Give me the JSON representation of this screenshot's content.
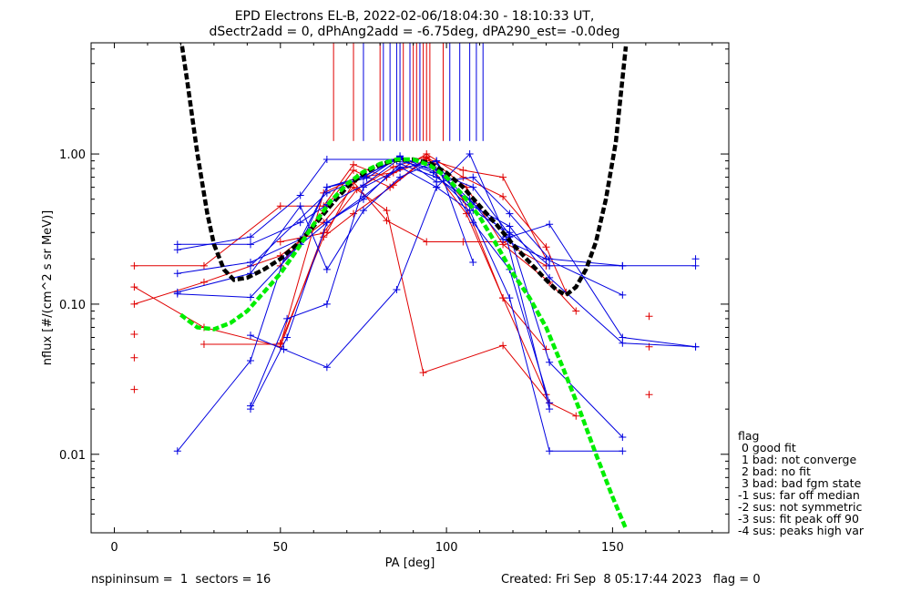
{
  "title": "EPD Electrons EL-B, 2022-02-06/18:04:30 - 18:10:33 UT,",
  "subtitle": "dSectr2add = 0, dPhAng2add = -6.75deg, dPA290_est=  -0.0deg",
  "footer": {
    "left": "nspininsum =  1  sectors = 16",
    "right": "Created: Fri Sep  8 05:17:44 2023   flag = 0"
  },
  "legend": {
    "title": "flag",
    "items": [
      " 0 good fit",
      " 1 bad: not converge",
      " 2 bad: no fit",
      " 3 bad: bad fgm state",
      "-1 sus: far off median",
      "-2 sus: not symmetric",
      "-3 sus: fit peak off 90",
      "-4 sus: peaks high var"
    ]
  },
  "chart_data": {
    "type": "line",
    "title": "EPD Electrons EL-B, 2022-02-06/18:04:30 - 18:10:33 UT,",
    "subtitle": "dSectr2add = 0, dPhAng2add = -6.75deg, dPA290_est=  -0.0deg",
    "xlabel": "PA [deg]",
    "ylabel": "nflux [#/(cm^2 s sr MeV)]",
    "xlim": [
      -7,
      185
    ],
    "ylim": [
      0.003,
      5.5
    ],
    "yscale": "log",
    "xticks": [
      0,
      50,
      100,
      150
    ],
    "xtick_labels": [
      "0",
      "50",
      "100",
      "150"
    ],
    "yticks": [
      0.01,
      0.1,
      1.0
    ],
    "ytick_labels": [
      "0.01",
      "0.10",
      "1.00"
    ],
    "colors": {
      "red": "#e00000",
      "blue": "#0000e0",
      "black": "#000000",
      "green": "#00ee00"
    },
    "vertical_lines": [
      {
        "x": 66,
        "color": "red"
      },
      {
        "x": 72,
        "color": "red"
      },
      {
        "x": 75,
        "color": "blue"
      },
      {
        "x": 80,
        "color": "red"
      },
      {
        "x": 81,
        "color": "blue"
      },
      {
        "x": 83,
        "color": "blue"
      },
      {
        "x": 85,
        "color": "blue"
      },
      {
        "x": 86,
        "color": "blue"
      },
      {
        "x": 87,
        "color": "red"
      },
      {
        "x": 89,
        "color": "blue"
      },
      {
        "x": 90,
        "color": "red"
      },
      {
        "x": 91,
        "color": "red"
      },
      {
        "x": 92,
        "color": "blue"
      },
      {
        "x": 93,
        "color": "red"
      },
      {
        "x": 94,
        "color": "red"
      },
      {
        "x": 95,
        "color": "red"
      },
      {
        "x": 99,
        "color": "red"
      },
      {
        "x": 101,
        "color": "blue"
      },
      {
        "x": 104,
        "color": "blue"
      },
      {
        "x": 107,
        "color": "blue"
      },
      {
        "x": 109,
        "color": "blue"
      },
      {
        "x": 111,
        "color": "blue"
      }
    ],
    "series": [
      {
        "color": "red",
        "points": [
          [
            6,
            0.18
          ],
          [
            27,
            0.18
          ],
          [
            50,
            0.45
          ],
          [
            63,
            0.45
          ],
          [
            72,
            0.85
          ],
          [
            82,
            0.7
          ],
          [
            94,
            1.0
          ],
          [
            105,
            0.7
          ],
          [
            117,
            0.52
          ],
          [
            130,
            0.24
          ],
          [
            136,
            0.12
          ]
        ]
      },
      {
        "color": "red",
        "points": [
          [
            6,
            0.13
          ],
          [
            27,
            0.07
          ],
          [
            50,
            0.052
          ],
          [
            63,
            0.3
          ],
          [
            73,
            0.58
          ],
          [
            84,
            0.82
          ],
          [
            94,
            0.96
          ],
          [
            106,
            0.6
          ],
          [
            117,
            0.25
          ],
          [
            131,
            0.14
          ],
          [
            139,
            0.09
          ]
        ]
      },
      {
        "color": "red",
        "points": [
          [
            6,
            0.1
          ],
          [
            27,
            0.14
          ],
          [
            50,
            0.21
          ],
          [
            63,
            0.35
          ],
          [
            72,
            0.6
          ],
          [
            82,
            0.42
          ],
          [
            93,
            0.035
          ],
          [
            117,
            0.053
          ],
          [
            131,
            0.022
          ],
          [
            139,
            0.018
          ]
        ]
      },
      {
        "color": "red",
        "points": [
          [
            27,
            0.054
          ],
          [
            50,
            0.054
          ],
          [
            63,
            0.55
          ],
          [
            73,
            0.7
          ],
          [
            84,
            0.75
          ],
          [
            94,
            0.9
          ],
          [
            106,
            0.4
          ],
          [
            117,
            0.11
          ],
          [
            130,
            0.025
          ]
        ]
      },
      {
        "color": "red",
        "points": [
          [
            50,
            0.18
          ],
          [
            63,
            0.42
          ],
          [
            72,
            0.78
          ],
          [
            83,
            0.6
          ],
          [
            94,
            0.95
          ],
          [
            105,
            0.5
          ],
          [
            117,
            0.11
          ],
          [
            130,
            0.05
          ]
        ]
      },
      {
        "color": "red",
        "points": [
          [
            50,
            0.26
          ],
          [
            64,
            0.3
          ],
          [
            72,
            0.65
          ],
          [
            82,
            0.36
          ],
          [
            94,
            0.26
          ],
          [
            105,
            0.26
          ],
          [
            117,
            0.26
          ],
          [
            130,
            0.18
          ]
        ]
      },
      {
        "color": "red",
        "points": [
          [
            50,
            0.055
          ],
          [
            63,
            0.28
          ],
          [
            72,
            0.4
          ],
          [
            84,
            0.62
          ],
          [
            94,
            0.93
          ],
          [
            105,
            0.78
          ],
          [
            117,
            0.7
          ],
          [
            130,
            0.2
          ]
        ]
      },
      {
        "color": "red",
        "points": [
          [
            6,
            0.063
          ]
        ]
      },
      {
        "color": "red",
        "points": [
          [
            6,
            0.044
          ]
        ]
      },
      {
        "color": "red",
        "points": [
          [
            6,
            0.027
          ]
        ]
      },
      {
        "color": "red",
        "points": [
          [
            161,
            0.083
          ]
        ]
      },
      {
        "color": "red",
        "points": [
          [
            161,
            0.052
          ]
        ]
      },
      {
        "color": "red",
        "points": [
          [
            161,
            0.025
          ]
        ]
      },
      {
        "color": "blue",
        "points": [
          [
            19,
            0.25
          ],
          [
            41,
            0.25
          ],
          [
            56,
            0.35
          ],
          [
            64,
            0.46
          ],
          [
            75,
            0.62
          ],
          [
            85,
            0.9
          ],
          [
            96,
            0.8
          ],
          [
            107,
            0.5
          ],
          [
            117,
            0.27
          ],
          [
            130,
            0.2
          ],
          [
            153,
            0.115
          ]
        ]
      },
      {
        "color": "blue",
        "points": [
          [
            19,
            0.23
          ],
          [
            41,
            0.28
          ],
          [
            56,
            0.53
          ],
          [
            64,
            0.92
          ],
          [
            86,
            0.92
          ],
          [
            96,
            0.75
          ],
          [
            108,
            0.42
          ],
          [
            119,
            0.3
          ],
          [
            131,
            0.18
          ],
          [
            153,
            0.18
          ],
          [
            175,
            0.18
          ]
        ]
      },
      {
        "color": "blue",
        "points": [
          [
            19,
            0.16
          ],
          [
            41,
            0.19
          ],
          [
            56,
            0.27
          ],
          [
            64,
            0.6
          ],
          [
            75,
            0.71
          ],
          [
            86,
            0.94
          ],
          [
            96,
            0.82
          ],
          [
            107,
            0.46
          ],
          [
            119,
            0.33
          ],
          [
            131,
            0.15
          ],
          [
            153,
            0.055
          ],
          [
            175,
            0.052
          ]
        ]
      },
      {
        "color": "blue",
        "points": [
          [
            19,
            0.12
          ],
          [
            41,
            0.16
          ],
          [
            56,
            0.45
          ],
          [
            64,
            0.17
          ],
          [
            75,
            0.42
          ],
          [
            86,
            0.7
          ],
          [
            97,
            0.9
          ],
          [
            108,
            0.19
          ]
        ]
      },
      {
        "color": "blue",
        "points": [
          [
            19,
            0.117
          ],
          [
            41,
            0.111
          ],
          [
            56,
            0.25
          ],
          [
            64,
            0.6
          ],
          [
            76,
            0.69
          ],
          [
            86,
            0.96
          ],
          [
            97,
            0.75
          ],
          [
            108,
            0.6
          ],
          [
            119,
            0.29
          ],
          [
            131,
            0.041
          ],
          [
            153,
            0.013
          ]
        ]
      },
      {
        "color": "blue",
        "points": [
          [
            19,
            0.0105
          ],
          [
            41,
            0.042
          ],
          [
            51,
            0.2
          ],
          [
            64,
            0.35
          ],
          [
            75,
            0.52
          ],
          [
            86,
            0.82
          ],
          [
            97,
            0.6
          ],
          [
            107,
            0.42
          ],
          [
            119,
            0.11
          ],
          [
            131,
            0.0105
          ],
          [
            153,
            0.0105
          ]
        ]
      },
      {
        "color": "blue",
        "points": [
          [
            41,
            0.062
          ],
          [
            51,
            0.05
          ],
          [
            64,
            0.038
          ],
          [
            85,
            0.125
          ],
          [
            97,
            0.6
          ],
          [
            107,
            1.0
          ],
          [
            118,
            0.28
          ],
          [
            131,
            0.02
          ]
        ]
      },
      {
        "color": "blue",
        "points": [
          [
            41,
            0.021
          ],
          [
            52,
            0.08
          ],
          [
            64,
            0.1
          ],
          [
            75,
            0.6
          ],
          [
            86,
            0.8
          ],
          [
            97,
            0.9
          ],
          [
            108,
            0.35
          ],
          [
            119,
            0.17
          ],
          [
            131,
            0.022
          ]
        ]
      },
      {
        "color": "blue",
        "points": [
          [
            41,
            0.02
          ],
          [
            52,
            0.06
          ],
          [
            64,
            0.35
          ],
          [
            75,
            0.5
          ],
          [
            86,
            0.86
          ],
          [
            97,
            0.7
          ],
          [
            108,
            0.47
          ],
          [
            119,
            0.28
          ],
          [
            131,
            0.34
          ],
          [
            153,
            0.06
          ],
          [
            175,
            0.052
          ]
        ]
      },
      {
        "color": "blue",
        "points": [
          [
            41,
            0.18
          ],
          [
            64,
            0.55
          ],
          [
            75,
            0.7
          ],
          [
            86,
            0.97
          ],
          [
            97,
            0.65
          ],
          [
            108,
            0.7
          ],
          [
            119,
            0.4
          ],
          [
            131,
            0.2
          ],
          [
            153,
            0.18
          ]
        ]
      },
      {
        "color": "blue",
        "points": [
          [
            175,
            0.2
          ]
        ]
      }
    ],
    "fits": [
      {
        "color": "black",
        "style": "dashed",
        "points": [
          [
            20,
            6
          ],
          [
            22,
            3
          ],
          [
            25,
            1
          ],
          [
            28,
            0.4
          ],
          [
            30,
            0.25
          ],
          [
            33,
            0.17
          ],
          [
            36,
            0.145
          ],
          [
            40,
            0.15
          ],
          [
            45,
            0.17
          ],
          [
            50,
            0.2
          ],
          [
            55,
            0.25
          ],
          [
            60,
            0.33
          ],
          [
            65,
            0.45
          ],
          [
            70,
            0.6
          ],
          [
            75,
            0.74
          ],
          [
            80,
            0.85
          ],
          [
            85,
            0.91
          ],
          [
            90,
            0.92
          ],
          [
            95,
            0.87
          ],
          [
            100,
            0.75
          ],
          [
            105,
            0.6
          ],
          [
            110,
            0.45
          ],
          [
            115,
            0.34
          ],
          [
            120,
            0.25
          ],
          [
            125,
            0.19
          ],
          [
            130,
            0.145
          ],
          [
            133,
            0.125
          ],
          [
            136,
            0.115
          ],
          [
            139,
            0.13
          ],
          [
            142,
            0.17
          ],
          [
            145,
            0.26
          ],
          [
            148,
            0.5
          ],
          [
            151,
            1.2
          ],
          [
            154,
            5.2
          ]
        ]
      },
      {
        "color": "green",
        "style": "dashed",
        "points": [
          [
            20,
            0.085
          ],
          [
            25,
            0.07
          ],
          [
            30,
            0.068
          ],
          [
            35,
            0.075
          ],
          [
            40,
            0.09
          ],
          [
            45,
            0.12
          ],
          [
            50,
            0.16
          ],
          [
            55,
            0.23
          ],
          [
            60,
            0.34
          ],
          [
            65,
            0.48
          ],
          [
            70,
            0.63
          ],
          [
            75,
            0.76
          ],
          [
            80,
            0.86
          ],
          [
            85,
            0.92
          ],
          [
            90,
            0.92
          ],
          [
            95,
            0.84
          ],
          [
            100,
            0.7
          ],
          [
            105,
            0.53
          ],
          [
            110,
            0.38
          ],
          [
            115,
            0.25
          ],
          [
            120,
            0.16
          ],
          [
            125,
            0.11
          ],
          [
            130,
            0.07
          ],
          [
            135,
            0.038
          ],
          [
            140,
            0.02
          ],
          [
            145,
            0.01
          ],
          [
            150,
            0.0052
          ],
          [
            154,
            0.0032
          ]
        ]
      }
    ]
  }
}
